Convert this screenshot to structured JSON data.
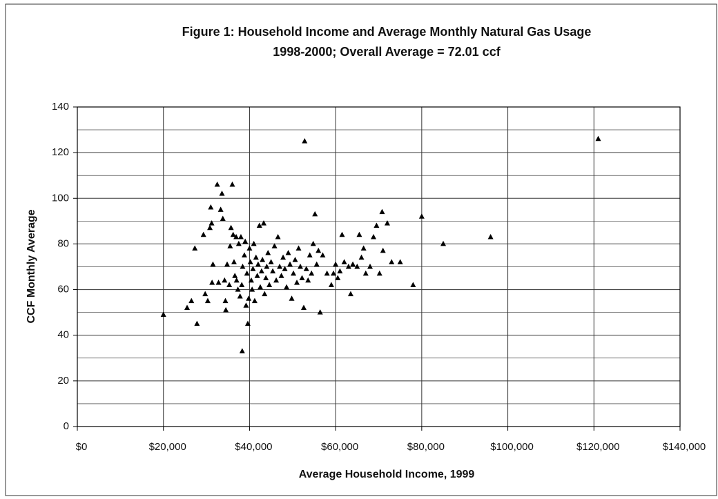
{
  "chart_data": {
    "type": "scatter",
    "title": "Figure 1: Household Income and Average Monthly Natural Gas Usage",
    "subtitle": "1998-2000; Overall Average = 72.01 ccf",
    "x_label": "Average Household Income, 1999",
    "y_label": "CCF Monthly Average",
    "color": "#000000",
    "marker": "triangle",
    "grid": true,
    "xlim": [
      0,
      140000
    ],
    "ylim": [
      0,
      140
    ],
    "xticks": [
      {
        "value": 0,
        "label": "$0"
      },
      {
        "value": 20000,
        "label": "$20,000"
      },
      {
        "value": 40000,
        "label": "$40,000"
      },
      {
        "value": 60000,
        "label": "$60,000"
      },
      {
        "value": 80000,
        "label": "$80,000"
      },
      {
        "value": 100000,
        "label": "$100,000"
      },
      {
        "value": 120000,
        "label": "$120,000"
      },
      {
        "value": 140000,
        "label": "$140,000"
      }
    ],
    "yticks": [
      0,
      20,
      40,
      60,
      80,
      100,
      120,
      140
    ],
    "minor_yticks": [
      10,
      30,
      50,
      70,
      90,
      110,
      130
    ],
    "x": [
      20000,
      25500,
      26500,
      27300,
      27800,
      29300,
      29700,
      30300,
      30800,
      31000,
      31200,
      31500,
      31300,
      32500,
      32800,
      33300,
      33600,
      33800,
      34200,
      34400,
      34500,
      34800,
      35300,
      35500,
      35700,
      36000,
      36200,
      36400,
      36600,
      36900,
      37000,
      37300,
      37500,
      37800,
      38000,
      38200,
      38400,
      38300,
      38800,
      39000,
      39200,
      39400,
      39600,
      39800,
      40000,
      40200,
      40400,
      40600,
      40800,
      41000,
      41200,
      41500,
      41800,
      42000,
      42300,
      42500,
      42800,
      43000,
      43300,
      43500,
      43800,
      44000,
      44300,
      44600,
      45000,
      45400,
      45800,
      46200,
      46600,
      47000,
      47400,
      47800,
      48200,
      48600,
      49000,
      49400,
      49800,
      50200,
      50600,
      51000,
      51400,
      51800,
      52200,
      52600,
      52800,
      53200,
      53600,
      54000,
      54400,
      54800,
      55200,
      55600,
      56000,
      56400,
      57000,
      58000,
      59000,
      59500,
      60000,
      60500,
      61000,
      61500,
      62000,
      63000,
      63500,
      64000,
      65000,
      65500,
      66000,
      66500,
      67000,
      68000,
      68800,
      69500,
      70200,
      70800,
      71000,
      72000,
      73000,
      75000,
      78000,
      80000,
      85000,
      96000,
      121000
    ],
    "values": [
      49,
      52,
      55,
      78,
      45,
      84,
      58,
      55,
      87,
      96,
      89,
      71,
      63,
      106,
      63,
      95,
      102,
      91,
      64,
      55,
      51,
      71,
      62,
      79,
      87,
      106,
      84,
      72,
      66,
      83,
      64,
      60,
      80,
      57,
      83,
      62,
      70,
      33,
      75,
      81,
      53,
      67,
      45,
      56,
      78,
      72,
      64,
      60,
      69,
      80,
      55,
      74,
      66,
      71,
      88,
      61,
      68,
      73,
      89,
      58,
      65,
      70,
      76,
      62,
      72,
      68,
      79,
      64,
      83,
      70,
      66,
      74,
      69,
      61,
      76,
      71,
      56,
      67,
      73,
      63,
      78,
      70,
      65,
      52,
      125,
      69,
      64,
      75,
      67,
      80,
      93,
      71,
      77,
      50,
      75,
      67,
      62,
      67,
      71,
      65,
      68,
      84,
      72,
      70,
      58,
      71,
      70,
      84,
      74,
      78,
      67,
      70,
      83,
      88,
      67,
      94,
      77,
      89,
      72,
      72,
      62,
      92,
      80,
      83,
      126
    ]
  }
}
